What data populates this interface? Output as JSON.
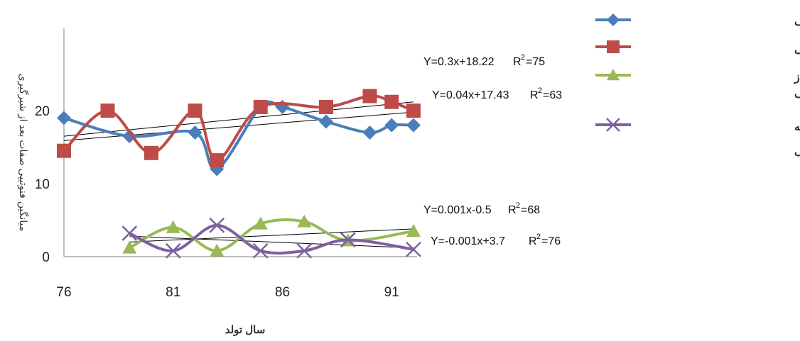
{
  "chart_data": {
    "type": "line",
    "xlabel": "سال تولد",
    "ylabel": "میانگین فنوتیپی صفات بعد از شیرگیری",
    "x_ticks": [
      "76",
      "81",
      "86",
      "91"
    ],
    "y_ticks": [
      "0",
      "10",
      "20"
    ],
    "xlim": [
      76,
      92
    ],
    "ylim": [
      0,
      26
    ],
    "grid": false,
    "legend_position": "right",
    "series": [
      {
        "name": "شش ماهگی",
        "color": "#4a7ebb",
        "marker": "diamond",
        "x": [
          76,
          79,
          82,
          83,
          85,
          86,
          88,
          90,
          91,
          92
        ],
        "y": [
          19,
          16.5,
          17,
          12,
          20.5,
          20.5,
          18.5,
          17,
          18,
          18
        ]
      },
      {
        "name": "نه ماهگی",
        "color": "#be4b48",
        "marker": "square",
        "x": [
          76,
          78,
          80,
          82,
          83,
          85,
          88,
          90,
          91,
          92
        ],
        "y": [
          14.5,
          20,
          14.2,
          20,
          13.2,
          20.5,
          20.5,
          22,
          21.2,
          20
        ]
      },
      {
        "name": "میزان اضافه وزن روزانه از سه ماهگی تا نه ماهگی",
        "color": "#98b954",
        "marker": "triangle",
        "x": [
          79,
          81,
          83,
          85,
          87,
          89,
          92
        ],
        "y": [
          1.2,
          4,
          0.8,
          4.5,
          4.8,
          2.2,
          3.5
        ]
      },
      {
        "name": "نسبت کلیبر از سه ماهگی تا نه ماهگی",
        "color": "#7d60a0",
        "marker": "x",
        "x": [
          79,
          81,
          83,
          85,
          87,
          89,
          92
        ],
        "y": [
          3.2,
          0.8,
          4.3,
          0.8,
          0.8,
          2.3,
          1
        ]
      }
    ],
    "trendlines": [
      {
        "equation": "Y=0.3x+18.22",
        "r2": "75",
        "x_range": [
          76,
          92
        ],
        "y_range": [
          16.5,
          21.2
        ]
      },
      {
        "equation": "Y=0.04x+17.43",
        "r2": "63",
        "x_range": [
          76,
          92
        ],
        "y_range": [
          15.9,
          19.8
        ]
      },
      {
        "equation": "Y=0.001x-0.5",
        "r2": "68",
        "x_range": [
          79,
          92
        ],
        "y_range": [
          2,
          3.8
        ]
      },
      {
        "equation": "Y=-0.001x+3.7",
        "r2": "76",
        "x_range": [
          79,
          92
        ],
        "y_range": [
          2.8,
          1.2
        ]
      }
    ],
    "legend": [
      {
        "lines": [
          "شش ماهگی"
        ]
      },
      {
        "lines": [
          "نه ماهگی"
        ]
      },
      {
        "lines": [
          "میزان اضافه وزن روزانه از",
          "سه ماهگی تا نه ماهگی"
        ]
      },
      {
        "lines": [
          "نسبت کلیبر از سه ماهگی تا نه",
          "ماهگی"
        ]
      }
    ],
    "r2_prefix": "R",
    "r2_suffix": "2"
  }
}
